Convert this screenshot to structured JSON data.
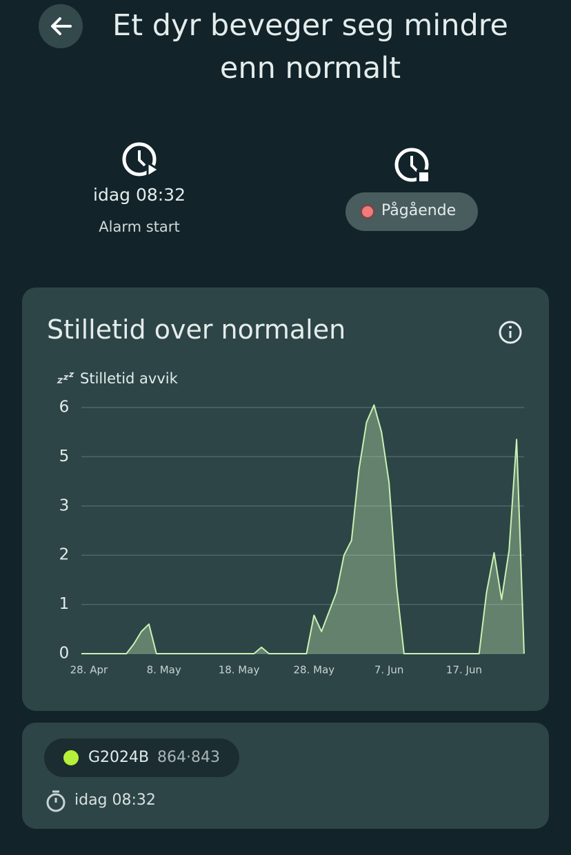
{
  "header": {
    "title": "Et dyr beveger seg mindre enn normalt"
  },
  "alarm": {
    "time": "idag 08:32",
    "label": "Alarm start",
    "status": "Pågående"
  },
  "card": {
    "title": "Stilletid over normalen"
  },
  "chart_data": {
    "type": "area",
    "categories": [
      null,
      "28. Apr",
      null,
      null,
      null,
      null,
      null,
      null,
      null,
      null,
      null,
      "8. May",
      null,
      null,
      null,
      null,
      null,
      null,
      null,
      null,
      null,
      "18. May",
      null,
      null,
      null,
      null,
      null,
      null,
      null,
      null,
      null,
      "28. May",
      null,
      null,
      null,
      null,
      null,
      null,
      null,
      null,
      null,
      "7. Jun",
      null,
      null,
      null,
      null,
      null,
      null,
      null,
      null,
      null,
      "17. Jun",
      null,
      null,
      null,
      null,
      null,
      null,
      null,
      null
    ],
    "series": [
      {
        "name": "Stilletid avvik",
        "color": "#c9f2b4",
        "values": [
          0,
          0,
          0,
          0,
          0,
          0,
          0,
          0.2,
          0.45,
          0.6,
          0,
          0,
          0,
          0,
          0,
          0,
          0,
          0,
          0,
          0,
          0,
          0,
          0,
          0,
          0.13,
          0,
          0,
          0,
          0,
          0,
          0,
          0.78,
          0.45,
          0.85,
          1.25,
          2,
          2.3,
          4.5,
          5.7,
          6.05,
          5.5,
          3.95,
          1.38,
          0,
          0,
          0,
          0,
          0,
          0,
          0,
          0,
          0,
          0,
          0,
          1.25,
          2.05,
          1.1,
          2.1,
          5.35,
          0
        ]
      }
    ],
    "ylim": [
      0,
      6
    ],
    "yticks": [
      0,
      1,
      2,
      3,
      5,
      6
    ],
    "grid": true
  },
  "animal": {
    "tag": "G2024B",
    "id": "864·843",
    "time": "idag 08:32"
  }
}
